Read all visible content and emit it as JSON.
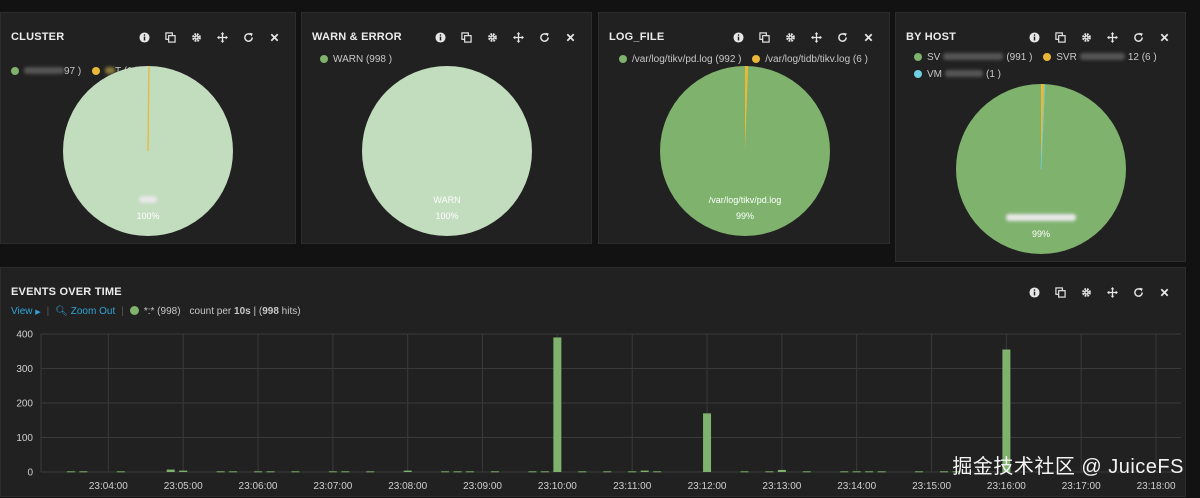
{
  "colors": {
    "green": "#7eb26d",
    "light_green": "#c2dcbe",
    "yellow": "#eab839",
    "cyan": "#6ed0e0"
  },
  "panels": {
    "cluster": {
      "title": "CLUSTER",
      "legend": [
        {
          "label": "97 )",
          "color": "#7eb26d"
        },
        {
          "label": "T (1 )",
          "color": "#eab839"
        }
      ],
      "percent": "100%"
    },
    "warn": {
      "title": "WARN & ERROR",
      "legend": [
        {
          "label": "WARN (998 )",
          "color": "#7eb26d"
        }
      ],
      "slice_label": "WARN",
      "percent": "100%"
    },
    "logfile": {
      "title": "LOG_FILE",
      "legend": [
        {
          "label": "/var/log/tikv/pd.log (992 )",
          "color": "#7eb26d"
        },
        {
          "label": "/var/log/tidb/tikv.log (6 )",
          "color": "#eab839"
        }
      ],
      "slice_label": "/var/log/tikv/pd.log",
      "percent": "99%"
    },
    "byhost": {
      "title": "BY HOST",
      "legend": [
        {
          "label": "SV",
          "suffix": "(991 )",
          "color": "#7eb26d"
        },
        {
          "label": "SVR",
          "suffix": "12 (6 )",
          "color": "#eab839"
        },
        {
          "label": "VM",
          "suffix": "(1 )",
          "color": "#6ed0e0"
        }
      ],
      "percent": "99%"
    },
    "events": {
      "title": "EVENTS OVER TIME",
      "view": "View",
      "zoom_out": "Zoom Out",
      "series_label": "*:* (998)",
      "count_per": "count per",
      "interval": "10s",
      "hits_count": "998",
      "hits_suffix": "hits)",
      "hits_open": "("
    }
  },
  "chart_data": [
    {
      "type": "pie",
      "title": "CLUSTER",
      "values": [
        997,
        1
      ],
      "labels": [
        "",
        "T"
      ],
      "colors": [
        "#c2dcbe",
        "#eab839"
      ]
    },
    {
      "type": "pie",
      "title": "WARN & ERROR",
      "values": [
        998
      ],
      "labels": [
        "WARN"
      ],
      "colors": [
        "#c2dcbe"
      ]
    },
    {
      "type": "pie",
      "title": "LOG_FILE",
      "values": [
        992,
        6
      ],
      "labels": [
        "/var/log/tikv/pd.log",
        "/var/log/tidb/tikv.log"
      ],
      "colors": [
        "#7eb26d",
        "#eab839"
      ]
    },
    {
      "type": "pie",
      "title": "BY HOST",
      "values": [
        991,
        6,
        1
      ],
      "labels": [
        "SV",
        "SVR",
        "VM"
      ],
      "colors": [
        "#7eb26d",
        "#eab839",
        "#6ed0e0"
      ]
    },
    {
      "type": "bar",
      "title": "EVENTS OVER TIME",
      "ylim": [
        0,
        400
      ],
      "yticks": [
        0,
        100,
        200,
        300,
        400
      ],
      "xlim": [
        "23:03:06",
        "23:18:20"
      ],
      "xticks": [
        "23:04:00",
        "23:05:00",
        "23:06:00",
        "23:07:00",
        "23:08:00",
        "23:09:00",
        "23:10:00",
        "23:11:00",
        "23:12:00",
        "23:13:00",
        "23:14:00",
        "23:15:00",
        "23:16:00",
        "23:17:00",
        "23:18:00"
      ],
      "series": [
        {
          "values": [
            [
              "23:03:30",
              2
            ],
            [
              "23:03:40",
              2
            ],
            [
              "23:04:10",
              2
            ],
            [
              "23:04:50",
              7
            ],
            [
              "23:05:00",
              4
            ],
            [
              "23:05:30",
              2
            ],
            [
              "23:05:40",
              2
            ],
            [
              "23:06:00",
              2
            ],
            [
              "23:06:10",
              2
            ],
            [
              "23:06:30",
              2
            ],
            [
              "23:07:00",
              2
            ],
            [
              "23:07:10",
              2
            ],
            [
              "23:07:30",
              2
            ],
            [
              "23:08:00",
              4
            ],
            [
              "23:08:30",
              2
            ],
            [
              "23:08:40",
              2
            ],
            [
              "23:08:50",
              2
            ],
            [
              "23:09:10",
              2
            ],
            [
              "23:09:40",
              2
            ],
            [
              "23:09:50",
              2
            ],
            [
              "23:10:00",
              390
            ],
            [
              "23:10:20",
              2
            ],
            [
              "23:10:40",
              2
            ],
            [
              "23:11:00",
              2
            ],
            [
              "23:11:10",
              4
            ],
            [
              "23:11:20",
              2
            ],
            [
              "23:12:00",
              170
            ],
            [
              "23:12:30",
              2
            ],
            [
              "23:12:50",
              2
            ],
            [
              "23:13:00",
              6
            ],
            [
              "23:13:20",
              2
            ],
            [
              "23:13:50",
              2
            ],
            [
              "23:14:00",
              2
            ],
            [
              "23:14:10",
              2
            ],
            [
              "23:14:20",
              2
            ],
            [
              "23:14:50",
              2
            ],
            [
              "23:15:10",
              2
            ],
            [
              "23:15:20",
              2
            ],
            [
              "23:16:00",
              355
            ]
          ]
        }
      ]
    }
  ],
  "watermark": "掘金技术社区 @ JuiceFS"
}
